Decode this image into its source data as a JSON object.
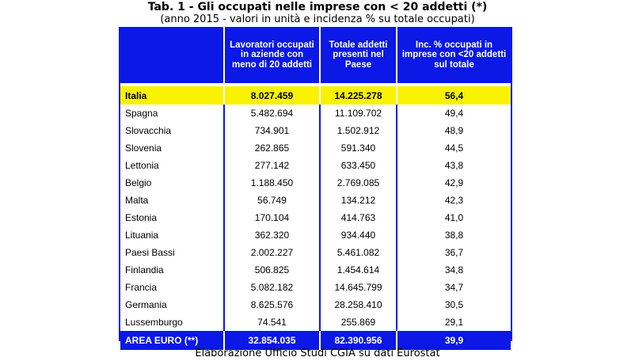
{
  "title": "Tab. 1 - Gli occupati nelle imprese con < 20 addetti (*)",
  "subtitle": "(anno 2015 - valori in unità e incidenza % su totale occupati)",
  "table": {
    "headers": [
      "",
      "Lavoratori occupati in aziende con meno di 20 addetti",
      "Totale addetti presenti nel Paese",
      "Inc. % occupati in imprese con <20 addetti sul totale"
    ],
    "italia": [
      "Italia",
      "8.027.459",
      "14.225.278",
      "56,4"
    ],
    "rows": [
      [
        "Spagna",
        "5.482.694",
        "11.109.702",
        "49,4"
      ],
      [
        "Slovacchia",
        "734.901",
        "1.502.912",
        "48,9"
      ],
      [
        "Slovenia",
        "262.865",
        "591.340",
        "44,5"
      ],
      [
        "Lettonia",
        "277.142",
        "633.450",
        "43,8"
      ],
      [
        "Belgio",
        "1.188.450",
        "2.769.085",
        "42,9"
      ],
      [
        "Malta",
        "56.749",
        "134.212",
        "42,3"
      ],
      [
        "Estonia",
        "170.104",
        "414.763",
        "41,0"
      ],
      [
        "Lituania",
        "362.320",
        "934.440",
        "38,8"
      ],
      [
        "Paesi Bassi",
        "2.002.227",
        "5.461.082",
        "36,7"
      ],
      [
        "Finlandia",
        "506.825",
        "1.454.614",
        "34,8"
      ],
      [
        "Francia",
        "5.082.182",
        "14.645.799",
        "34,7"
      ],
      [
        "Germania",
        "8.625.576",
        "28.258.410",
        "30,5"
      ],
      [
        "Lussemburgo",
        "74.541",
        "255.869",
        "29,1"
      ]
    ],
    "total": [
      "AREA EURO (**)",
      "32.854.035",
      "82.390.956",
      "39,9"
    ]
  },
  "footnote": "Elaborazione Ufficio Studi CGIA su dati Eurostat",
  "colors": {
    "header_blue": "#0b18e6",
    "italia_yellow": "#f9f200"
  }
}
